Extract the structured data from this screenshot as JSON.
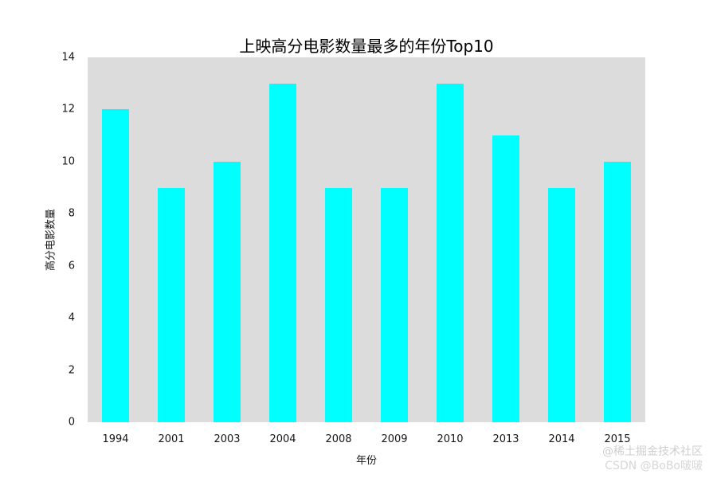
{
  "chart_data": {
    "type": "bar",
    "title": "上映高分电影数量最多的年份Top10",
    "xlabel": "年份",
    "ylabel": "高分电影数量",
    "categories": [
      "1994",
      "2001",
      "2003",
      "2004",
      "2008",
      "2009",
      "2010",
      "2013",
      "2014",
      "2015"
    ],
    "values": [
      12,
      9,
      10,
      13,
      9,
      9,
      13,
      11,
      9,
      10
    ],
    "ylim": [
      0,
      14
    ],
    "yticks": [
      0,
      2,
      4,
      6,
      8,
      10,
      12,
      14
    ],
    "grid": false,
    "legend_position": "none",
    "bar_color": "#00ffff",
    "plot_bg": "#dcdcdc"
  },
  "watermark": {
    "line1": "@稀土掘金技术社区",
    "line2": "CSDN @BoBo啵啵"
  }
}
